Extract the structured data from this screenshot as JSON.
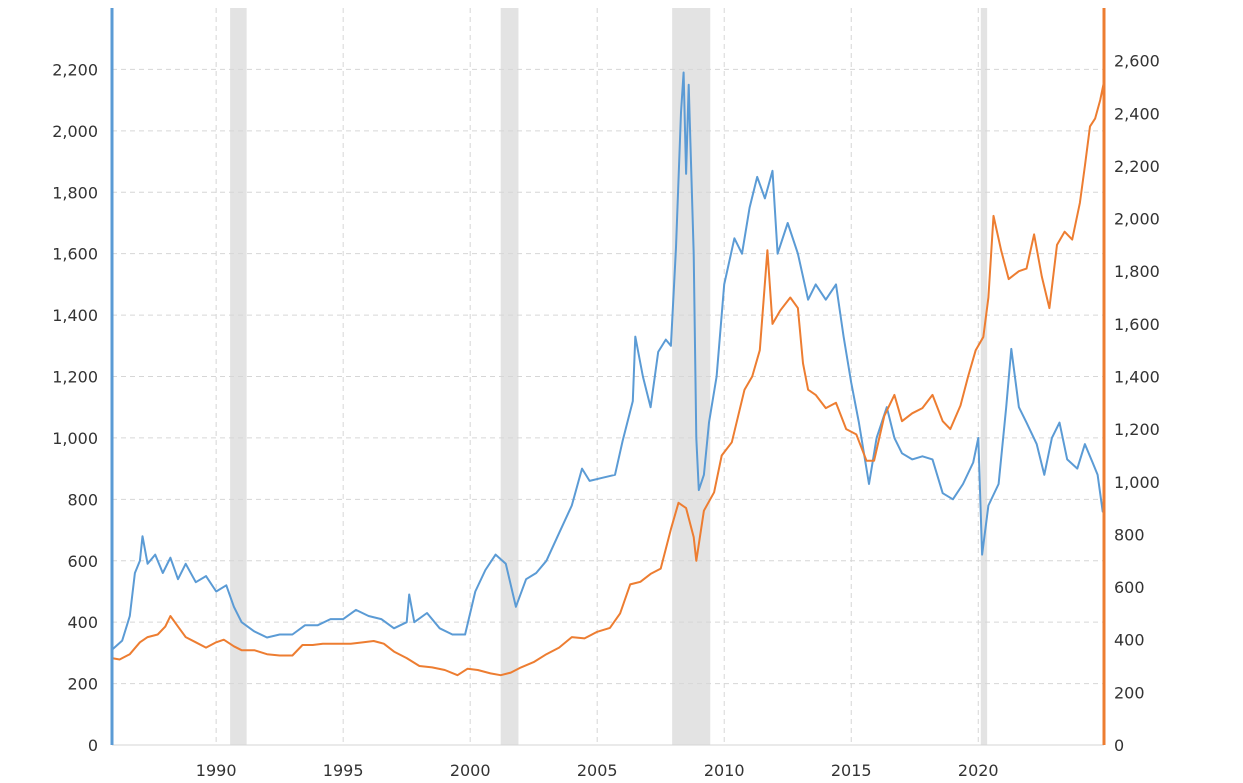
{
  "chart_data": {
    "type": "line",
    "title": "",
    "xlabel": "",
    "ylabel_left": "",
    "ylabel_right": "",
    "x_range": [
      1985.9,
      2024.95
    ],
    "x_ticks": [
      1990,
      1995,
      2000,
      2005,
      2010,
      2015,
      2020
    ],
    "x_tick_labels": [
      "1990",
      "1995",
      "2000",
      "2005",
      "2010",
      "2015",
      "2020"
    ],
    "y_left": {
      "range": [
        0,
        2400
      ],
      "ticks": [
        0,
        200,
        400,
        600,
        800,
        1000,
        1200,
        1400,
        1600,
        1800,
        2000,
        2200
      ],
      "tick_labels": [
        "0",
        "200",
        "400",
        "600",
        "800",
        "1,000",
        "1,200",
        "1,400",
        "1,600",
        "1,800",
        "2,000",
        "2,200"
      ]
    },
    "y_right": {
      "range": [
        0,
        2800
      ],
      "ticks": [
        0,
        200,
        400,
        600,
        800,
        1000,
        1200,
        1400,
        1600,
        1800,
        2000,
        2200,
        2400,
        2600
      ],
      "tick_labels": [
        "0",
        "200",
        "400",
        "600",
        "800",
        "1,000",
        "1,200",
        "1,400",
        "1,600",
        "1,800",
        "2,000",
        "2,200",
        "2,400",
        "2,600"
      ]
    },
    "grid": true,
    "legend": "none",
    "recessions": [
      [
        1990.55,
        1991.2
      ],
      [
        2001.2,
        2001.9
      ],
      [
        2007.95,
        2009.45
      ],
      [
        2020.1,
        2020.35
      ]
    ],
    "series": [
      {
        "axis": "left",
        "color": "#5b9bd5",
        "points": [
          [
            1985.9,
            310
          ],
          [
            1986.3,
            340
          ],
          [
            1986.6,
            420
          ],
          [
            1986.8,
            560
          ],
          [
            1987.0,
            600
          ],
          [
            1987.1,
            680
          ],
          [
            1987.3,
            590
          ],
          [
            1987.6,
            620
          ],
          [
            1987.9,
            560
          ],
          [
            1988.2,
            610
          ],
          [
            1988.5,
            540
          ],
          [
            1988.8,
            590
          ],
          [
            1989.2,
            530
          ],
          [
            1989.6,
            550
          ],
          [
            1990.0,
            500
          ],
          [
            1990.4,
            520
          ],
          [
            1990.7,
            450
          ],
          [
            1991.0,
            400
          ],
          [
            1991.5,
            370
          ],
          [
            1992.0,
            350
          ],
          [
            1992.5,
            360
          ],
          [
            1993.0,
            360
          ],
          [
            1993.5,
            390
          ],
          [
            1994.0,
            390
          ],
          [
            1994.5,
            410
          ],
          [
            1995.0,
            410
          ],
          [
            1995.5,
            440
          ],
          [
            1996.0,
            420
          ],
          [
            1996.5,
            410
          ],
          [
            1997.0,
            380
          ],
          [
            1997.5,
            400
          ],
          [
            1997.6,
            490
          ],
          [
            1997.8,
            400
          ],
          [
            1998.3,
            430
          ],
          [
            1998.8,
            380
          ],
          [
            1999.3,
            360
          ],
          [
            1999.8,
            360
          ],
          [
            2000.2,
            500
          ],
          [
            2000.6,
            570
          ],
          [
            2001.0,
            620
          ],
          [
            2001.4,
            590
          ],
          [
            2001.8,
            450
          ],
          [
            2002.2,
            540
          ],
          [
            2002.6,
            560
          ],
          [
            2003.0,
            600
          ],
          [
            2003.5,
            690
          ],
          [
            2004.0,
            780
          ],
          [
            2004.4,
            900
          ],
          [
            2004.7,
            860
          ],
          [
            2005.2,
            870
          ],
          [
            2005.7,
            880
          ],
          [
            2006.0,
            990
          ],
          [
            2006.4,
            1120
          ],
          [
            2006.5,
            1330
          ],
          [
            2006.8,
            1200
          ],
          [
            2007.1,
            1100
          ],
          [
            2007.4,
            1280
          ],
          [
            2007.7,
            1320
          ],
          [
            2007.9,
            1300
          ],
          [
            2008.1,
            1620
          ],
          [
            2008.3,
            2060
          ],
          [
            2008.4,
            2190
          ],
          [
            2008.5,
            1860
          ],
          [
            2008.6,
            2150
          ],
          [
            2008.8,
            1600
          ],
          [
            2008.9,
            1000
          ],
          [
            2009.0,
            830
          ],
          [
            2009.2,
            880
          ],
          [
            2009.4,
            1050
          ],
          [
            2009.7,
            1200
          ],
          [
            2010.0,
            1500
          ],
          [
            2010.4,
            1650
          ],
          [
            2010.7,
            1600
          ],
          [
            2011.0,
            1750
          ],
          [
            2011.3,
            1850
          ],
          [
            2011.6,
            1780
          ],
          [
            2011.9,
            1870
          ],
          [
            2012.1,
            1600
          ],
          [
            2012.5,
            1700
          ],
          [
            2012.9,
            1600
          ],
          [
            2013.3,
            1450
          ],
          [
            2013.6,
            1500
          ],
          [
            2014.0,
            1450
          ],
          [
            2014.4,
            1500
          ],
          [
            2014.7,
            1330
          ],
          [
            2015.0,
            1180
          ],
          [
            2015.3,
            1050
          ],
          [
            2015.7,
            850
          ],
          [
            2016.0,
            1000
          ],
          [
            2016.4,
            1100
          ],
          [
            2016.7,
            1000
          ],
          [
            2017.0,
            950
          ],
          [
            2017.4,
            930
          ],
          [
            2017.8,
            940
          ],
          [
            2018.2,
            930
          ],
          [
            2018.6,
            820
          ],
          [
            2019.0,
            800
          ],
          [
            2019.4,
            850
          ],
          [
            2019.8,
            920
          ],
          [
            2020.0,
            1000
          ],
          [
            2020.15,
            620
          ],
          [
            2020.4,
            780
          ],
          [
            2020.8,
            850
          ],
          [
            2021.1,
            1100
          ],
          [
            2021.3,
            1290
          ],
          [
            2021.6,
            1100
          ],
          [
            2021.9,
            1050
          ],
          [
            2022.3,
            980
          ],
          [
            2022.6,
            880
          ],
          [
            2022.9,
            1000
          ],
          [
            2023.2,
            1050
          ],
          [
            2023.5,
            930
          ],
          [
            2023.9,
            900
          ],
          [
            2024.2,
            980
          ],
          [
            2024.5,
            920
          ],
          [
            2024.7,
            880
          ],
          [
            2024.9,
            760
          ]
        ]
      },
      {
        "axis": "right",
        "color": "#ed7d31",
        "points": [
          [
            1985.9,
            330
          ],
          [
            1986.2,
            325
          ],
          [
            1986.6,
            345
          ],
          [
            1987.0,
            390
          ],
          [
            1987.3,
            410
          ],
          [
            1987.7,
            420
          ],
          [
            1988.0,
            450
          ],
          [
            1988.2,
            490
          ],
          [
            1988.5,
            450
          ],
          [
            1988.8,
            410
          ],
          [
            1989.2,
            390
          ],
          [
            1989.6,
            370
          ],
          [
            1990.0,
            390
          ],
          [
            1990.3,
            400
          ],
          [
            1990.7,
            375
          ],
          [
            1991.0,
            360
          ],
          [
            1991.5,
            360
          ],
          [
            1992.0,
            345
          ],
          [
            1992.5,
            340
          ],
          [
            1993.0,
            340
          ],
          [
            1993.4,
            380
          ],
          [
            1993.8,
            380
          ],
          [
            1994.2,
            385
          ],
          [
            1994.8,
            385
          ],
          [
            1995.3,
            385
          ],
          [
            1995.8,
            390
          ],
          [
            1996.2,
            395
          ],
          [
            1996.6,
            385
          ],
          [
            1997.0,
            355
          ],
          [
            1997.5,
            330
          ],
          [
            1998.0,
            300
          ],
          [
            1998.5,
            295
          ],
          [
            1999.0,
            285
          ],
          [
            1999.5,
            265
          ],
          [
            1999.9,
            290
          ],
          [
            2000.3,
            285
          ],
          [
            2000.8,
            272
          ],
          [
            2001.2,
            265
          ],
          [
            2001.6,
            275
          ],
          [
            2002.0,
            295
          ],
          [
            2002.5,
            315
          ],
          [
            2003.0,
            345
          ],
          [
            2003.5,
            370
          ],
          [
            2004.0,
            410
          ],
          [
            2004.5,
            405
          ],
          [
            2005.0,
            430
          ],
          [
            2005.5,
            445
          ],
          [
            2005.9,
            500
          ],
          [
            2006.3,
            610
          ],
          [
            2006.7,
            620
          ],
          [
            2007.1,
            650
          ],
          [
            2007.5,
            670
          ],
          [
            2007.9,
            820
          ],
          [
            2008.2,
            920
          ],
          [
            2008.5,
            900
          ],
          [
            2008.8,
            790
          ],
          [
            2008.9,
            700
          ],
          [
            2009.2,
            890
          ],
          [
            2009.6,
            960
          ],
          [
            2009.9,
            1100
          ],
          [
            2010.3,
            1150
          ],
          [
            2010.8,
            1350
          ],
          [
            2011.1,
            1400
          ],
          [
            2011.4,
            1500
          ],
          [
            2011.7,
            1880
          ],
          [
            2011.9,
            1600
          ],
          [
            2012.2,
            1650
          ],
          [
            2012.6,
            1700
          ],
          [
            2012.9,
            1660
          ],
          [
            2013.1,
            1450
          ],
          [
            2013.3,
            1350
          ],
          [
            2013.6,
            1330
          ],
          [
            2014.0,
            1280
          ],
          [
            2014.4,
            1300
          ],
          [
            2014.8,
            1200
          ],
          [
            2015.2,
            1180
          ],
          [
            2015.6,
            1080
          ],
          [
            2015.9,
            1080
          ],
          [
            2016.3,
            1250
          ],
          [
            2016.7,
            1330
          ],
          [
            2017.0,
            1230
          ],
          [
            2017.4,
            1260
          ],
          [
            2017.8,
            1280
          ],
          [
            2018.2,
            1330
          ],
          [
            2018.6,
            1230
          ],
          [
            2018.9,
            1200
          ],
          [
            2019.3,
            1290
          ],
          [
            2019.6,
            1400
          ],
          [
            2019.9,
            1500
          ],
          [
            2020.2,
            1550
          ],
          [
            2020.4,
            1700
          ],
          [
            2020.6,
            2010
          ],
          [
            2020.9,
            1880
          ],
          [
            2021.2,
            1770
          ],
          [
            2021.6,
            1800
          ],
          [
            2021.9,
            1810
          ],
          [
            2022.2,
            1940
          ],
          [
            2022.5,
            1780
          ],
          [
            2022.8,
            1660
          ],
          [
            2023.1,
            1900
          ],
          [
            2023.4,
            1950
          ],
          [
            2023.7,
            1920
          ],
          [
            2024.0,
            2060
          ],
          [
            2024.2,
            2200
          ],
          [
            2024.4,
            2350
          ],
          [
            2024.6,
            2380
          ],
          [
            2024.8,
            2450
          ],
          [
            2024.95,
            2520
          ]
        ]
      }
    ]
  }
}
